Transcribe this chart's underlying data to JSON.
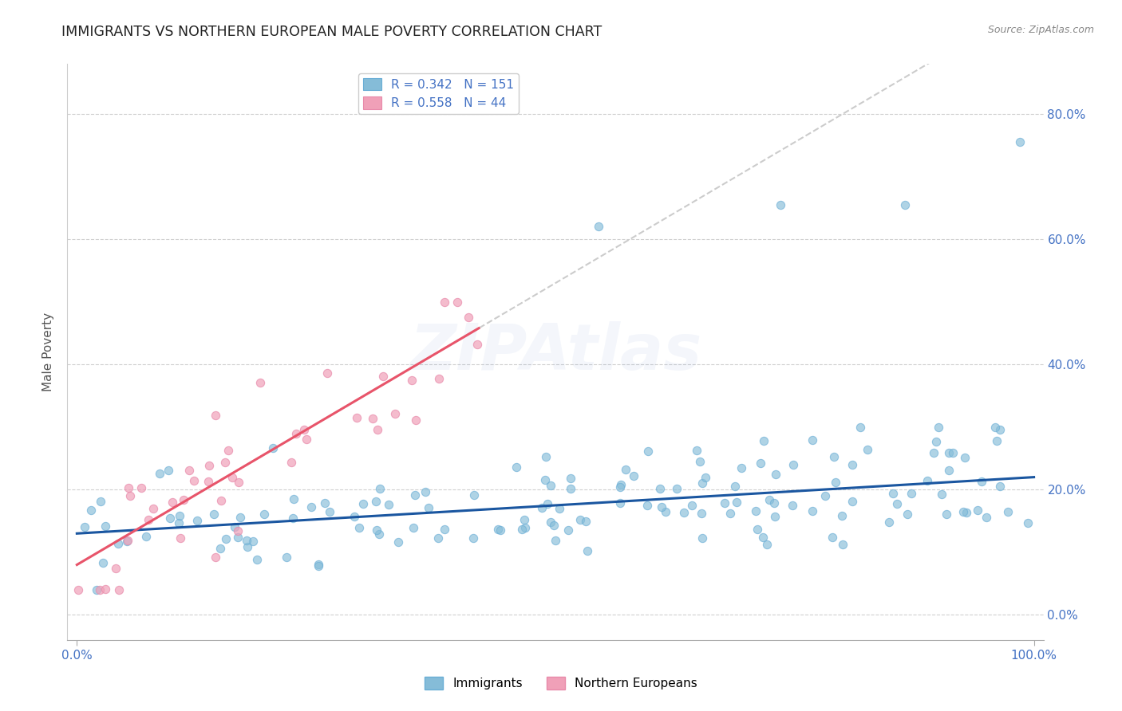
{
  "title": "IMMIGRANTS VS NORTHERN EUROPEAN MALE POVERTY CORRELATION CHART",
  "source": "Source: ZipAtlas.com",
  "ylabel": "Male Poverty",
  "xlim": [
    -0.01,
    1.01
  ],
  "ylim": [
    -0.04,
    0.88
  ],
  "yticks": [
    0.0,
    0.2,
    0.4,
    0.6,
    0.8
  ],
  "ytick_labels": [
    "0.0%",
    "20.0%",
    "40.0%",
    "60.0%",
    "80.0%"
  ],
  "xticks": [
    0.0,
    1.0
  ],
  "xtick_labels": [
    "0.0%",
    "100.0%"
  ],
  "legend_r1": "R = 0.342",
  "legend_n1": "N = 151",
  "legend_r2": "R = 0.558",
  "legend_n2": "N = 44",
  "blue_color": "#92c5de",
  "pink_color": "#f4a582",
  "blue_line_color": "#1a56a0",
  "pink_line_color": "#e8546a",
  "trend_line_color": "#cccccc",
  "background_color": "#ffffff",
  "blue_scatter_color": "#85bcd8",
  "pink_scatter_color": "#f0a0b8",
  "imm_seed": 12345,
  "nor_seed": 67890,
  "blue_intercept": 0.13,
  "blue_slope": 0.09,
  "pink_intercept": 0.08,
  "pink_slope": 0.9
}
